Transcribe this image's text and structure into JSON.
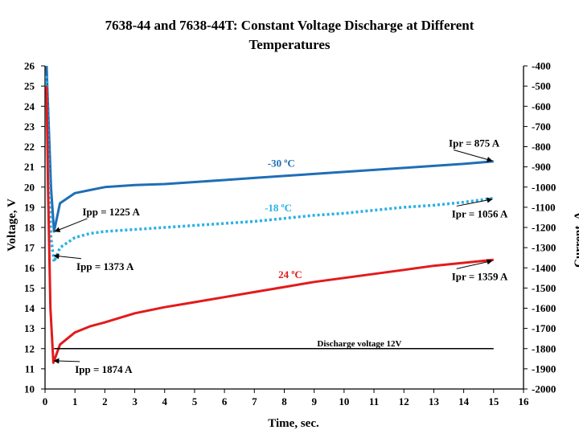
{
  "chart_data": {
    "type": "line",
    "title_line1": "7638-44 and 7638-44T:  Constant Voltage Discharge at Different",
    "title_line2": "Temperatures",
    "xlabel": "Time, sec.",
    "ylabel": "Voltage, V",
    "y2label": "Current, A",
    "xlim": [
      0,
      16
    ],
    "ylim": [
      10,
      26
    ],
    "y2lim": [
      -2000,
      -400
    ],
    "x_ticks": [
      0,
      1,
      2,
      3,
      4,
      5,
      6,
      7,
      8,
      9,
      10,
      11,
      12,
      13,
      14,
      15,
      16
    ],
    "y_ticks": [
      10,
      11,
      12,
      13,
      14,
      15,
      16,
      17,
      18,
      19,
      20,
      21,
      22,
      23,
      24,
      25,
      26
    ],
    "y2_ticks": [
      -400,
      -500,
      -600,
      -700,
      -800,
      -900,
      -1000,
      -1100,
      -1200,
      -1300,
      -1400,
      -1500,
      -1600,
      -1700,
      -1800,
      -1900,
      -2000
    ],
    "grid": false,
    "series": [
      {
        "name": "-30 oC",
        "color": "#1f6eb5",
        "style": "solid",
        "points": [
          [
            0.05,
            26
          ],
          [
            0.1,
            24
          ],
          [
            0.2,
            20
          ],
          [
            0.3,
            17.8
          ],
          [
            0.5,
            19.2
          ],
          [
            1,
            19.7
          ],
          [
            1.5,
            19.85
          ],
          [
            2,
            20
          ],
          [
            3,
            20.1
          ],
          [
            4,
            20.15
          ],
          [
            5,
            20.25
          ],
          [
            6,
            20.35
          ],
          [
            7,
            20.45
          ],
          [
            8,
            20.55
          ],
          [
            9,
            20.65
          ],
          [
            10,
            20.75
          ],
          [
            11,
            20.85
          ],
          [
            12,
            20.95
          ],
          [
            13,
            21.05
          ],
          [
            14,
            21.15
          ],
          [
            15,
            21.27
          ]
        ]
      },
      {
        "name": "-18 oC",
        "color": "#2ab0e6",
        "style": "dotted",
        "points": [
          [
            0.05,
            25.5
          ],
          [
            0.1,
            22
          ],
          [
            0.2,
            17.5
          ],
          [
            0.3,
            16.3
          ],
          [
            0.5,
            17.0
          ],
          [
            1,
            17.5
          ],
          [
            1.5,
            17.7
          ],
          [
            2,
            17.8
          ],
          [
            3,
            17.9
          ],
          [
            4,
            18.0
          ],
          [
            5,
            18.1
          ],
          [
            6,
            18.2
          ],
          [
            7,
            18.3
          ],
          [
            8,
            18.45
          ],
          [
            9,
            18.6
          ],
          [
            10,
            18.7
          ],
          [
            11,
            18.85
          ],
          [
            12,
            19.0
          ],
          [
            13,
            19.1
          ],
          [
            14,
            19.25
          ],
          [
            15,
            19.45
          ]
        ]
      },
      {
        "name": "24 oC",
        "color": "#e31a1c",
        "style": "solid",
        "points": [
          [
            0.05,
            25
          ],
          [
            0.1,
            20
          ],
          [
            0.18,
            14
          ],
          [
            0.28,
            11.3
          ],
          [
            0.5,
            12.2
          ],
          [
            1,
            12.8
          ],
          [
            1.5,
            13.1
          ],
          [
            2,
            13.3
          ],
          [
            3,
            13.75
          ],
          [
            4,
            14.05
          ],
          [
            5,
            14.3
          ],
          [
            6,
            14.55
          ],
          [
            7,
            14.8
          ],
          [
            8,
            15.05
          ],
          [
            9,
            15.3
          ],
          [
            10,
            15.5
          ],
          [
            11,
            15.7
          ],
          [
            12,
            15.9
          ],
          [
            13,
            16.1
          ],
          [
            14,
            16.25
          ],
          [
            15,
            16.4
          ]
        ]
      },
      {
        "name": "Discharge voltage 12V",
        "color": "#000000",
        "style": "solid",
        "points": [
          [
            0.3,
            12
          ],
          [
            15,
            12
          ]
        ]
      }
    ],
    "annotations": [
      {
        "text": "Ipp = 1225 A",
        "x": 1.25,
        "y": 18.6,
        "color": "#000000",
        "arrow_to": [
          0.33,
          17.8
        ]
      },
      {
        "text": "Ipp = 1373 A",
        "x": 1.05,
        "y": 15.9,
        "color": "#000000",
        "arrow_to": [
          0.3,
          16.6
        ]
      },
      {
        "text": "Ipp = 1874 A",
        "x": 1.0,
        "y": 10.8,
        "color": "#000000",
        "arrow_to": [
          0.3,
          11.4
        ]
      },
      {
        "text": "Ipr = 875 A",
        "x": 13.5,
        "y": 22.0,
        "color": "#000000",
        "arrow_to": [
          14.95,
          21.3
        ]
      },
      {
        "text": "Ipr = 1056 A",
        "x": 13.6,
        "y": 18.5,
        "color": "#000000",
        "arrow_to": [
          14.95,
          19.4
        ]
      },
      {
        "text": "Ipr = 1359 A",
        "x": 13.6,
        "y": 15.4,
        "color": "#000000",
        "arrow_to": [
          14.95,
          16.35
        ]
      },
      {
        "text": "-30 ",
        "sup": "o",
        "after": "C",
        "x": 7.9,
        "y": 21.0,
        "color": "#1f6eb5"
      },
      {
        "text": "-18 ",
        "sup": "o",
        "after": "C",
        "x": 7.8,
        "y": 18.8,
        "color": "#2ab0e6"
      },
      {
        "text": "24 ",
        "sup": "o",
        "after": "C",
        "x": 8.2,
        "y": 15.5,
        "color": "#e31a1c"
      },
      {
        "text": "Discharge voltage 12V",
        "x": 9.1,
        "y": 12.1,
        "color": "#000000",
        "small": true
      }
    ]
  }
}
